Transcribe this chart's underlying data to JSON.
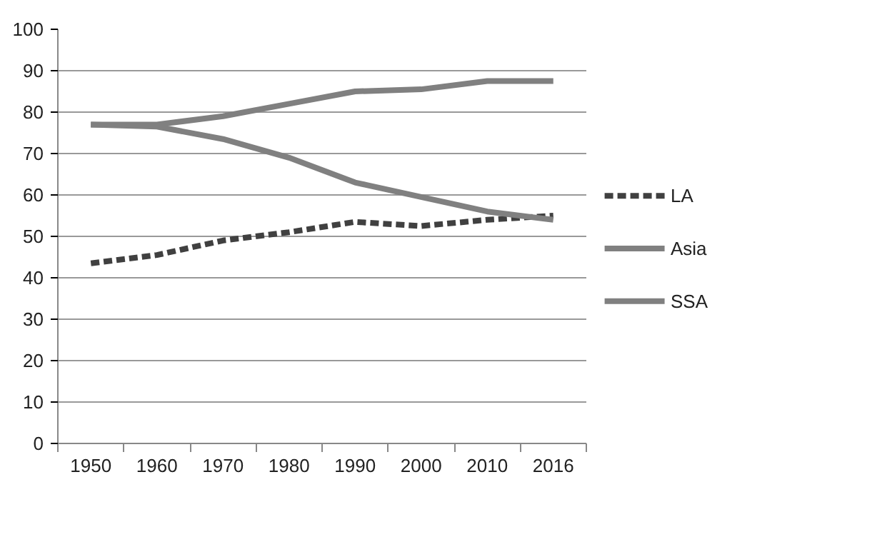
{
  "chart_data": {
    "type": "line",
    "categories": [
      "1950",
      "1960",
      "1970",
      "1980",
      "1990",
      "2000",
      "2010",
      "2016"
    ],
    "series": [
      {
        "name": "LA",
        "color": "#404040",
        "line_style": "dashed",
        "values": [
          43.5,
          45.5,
          49,
          51,
          53.5,
          52.5,
          54,
          55
        ]
      },
      {
        "name": "Asia",
        "color": "#808080",
        "line_style": "solid",
        "values": [
          77,
          76.5,
          73.5,
          69,
          63,
          59.5,
          56,
          54
        ]
      },
      {
        "name": "SSA",
        "color": "#808080",
        "line_style": "solid",
        "values": [
          77,
          77,
          79,
          82,
          85,
          85.5,
          87.5,
          87.5
        ]
      }
    ],
    "ylim": [
      0,
      100
    ],
    "yticks": [
      0,
      10,
      20,
      30,
      40,
      50,
      60,
      70,
      80,
      90,
      100
    ],
    "grid": "y",
    "legend": "right",
    "marker": "none"
  }
}
